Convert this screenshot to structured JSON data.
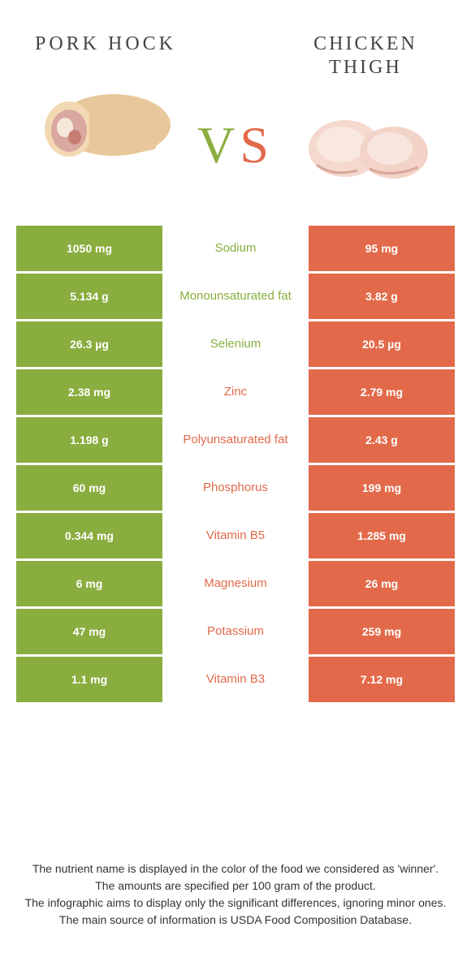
{
  "header": {
    "left_title": "Pork hock",
    "right_title": "Chicken thigh",
    "vs_v": "V",
    "vs_s": "S"
  },
  "colors": {
    "left": "#8aad3f",
    "right": "#e26a4a",
    "bg": "#ffffff"
  },
  "rows": [
    {
      "left": "1050 mg",
      "label": "Sodium",
      "right": "95 mg",
      "winner": "left"
    },
    {
      "left": "5.134 g",
      "label": "Monounsaturated fat",
      "right": "3.82 g",
      "winner": "left"
    },
    {
      "left": "26.3 µg",
      "label": "Selenium",
      "right": "20.5 µg",
      "winner": "left"
    },
    {
      "left": "2.38 mg",
      "label": "Zinc",
      "right": "2.79 mg",
      "winner": "right"
    },
    {
      "left": "1.198 g",
      "label": "Polyunsaturated fat",
      "right": "2.43 g",
      "winner": "right"
    },
    {
      "left": "60 mg",
      "label": "Phosphorus",
      "right": "199 mg",
      "winner": "right"
    },
    {
      "left": "0.344 mg",
      "label": "Vitamin B5",
      "right": "1.285 mg",
      "winner": "right"
    },
    {
      "left": "6 mg",
      "label": "Magnesium",
      "right": "26 mg",
      "winner": "right"
    },
    {
      "left": "47 mg",
      "label": "Potassium",
      "right": "259 mg",
      "winner": "right"
    },
    {
      "left": "1.1 mg",
      "label": "Vitamin B3",
      "right": "7.12 mg",
      "winner": "right"
    }
  ],
  "footer": {
    "line1": "The nutrient name is displayed in the color of the food we considered as 'winner'.",
    "line2": "The amounts are specified per 100 gram of the product.",
    "line3": "The infographic aims to display only the significant differences, ignoring minor ones.",
    "line4": "The main source of information is USDA Food Composition Database."
  }
}
